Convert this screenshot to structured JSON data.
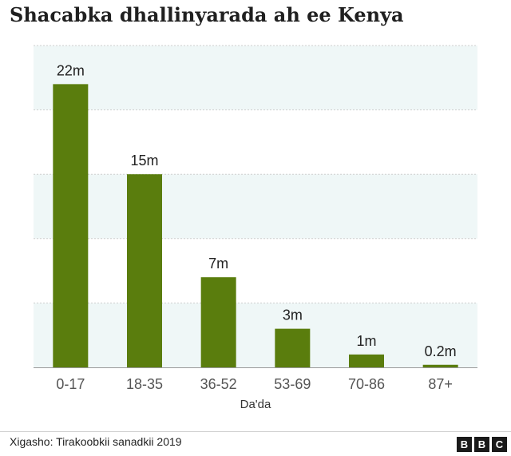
{
  "title": "Shacabka dhallinyarada ah ee Kenya",
  "source": "Xigasho: Tirakoobkii sanadkii 2019",
  "logo": {
    "letters": [
      "B",
      "B",
      "C"
    ]
  },
  "colors": {
    "bar": "#5a7d0d",
    "band": "#eff7f7",
    "grid": "#cfcfcf",
    "axis": "#999999",
    "tick_text": "#555555"
  },
  "chart_data": {
    "type": "bar",
    "categories": [
      "0-17",
      "18-35",
      "36-52",
      "53-69",
      "70-86",
      "87+"
    ],
    "values": [
      22,
      15,
      7,
      3,
      1,
      0.2
    ],
    "data_labels": [
      "22m",
      "15m",
      "7m",
      "3m",
      "1m",
      "0.2m"
    ],
    "xlabel": "Da'da",
    "ylabel": "",
    "ylim": [
      0,
      25
    ],
    "grid": true,
    "unit": "m"
  }
}
